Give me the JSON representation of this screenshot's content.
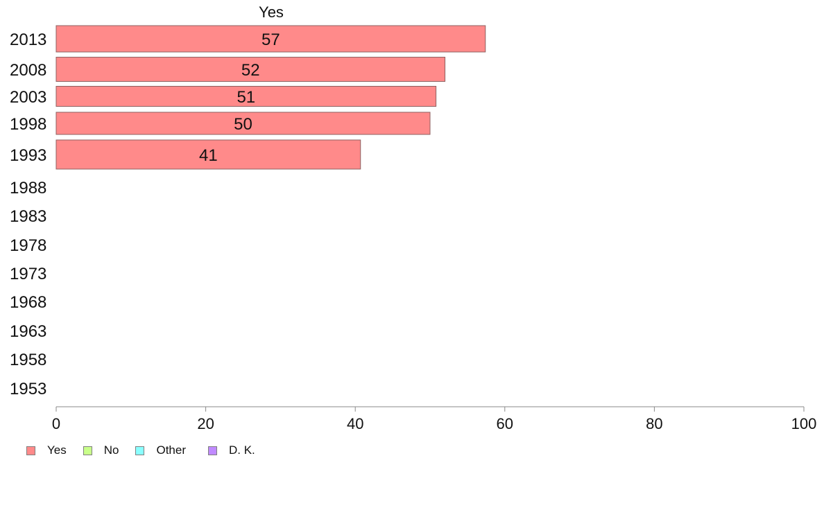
{
  "chart_data": {
    "type": "bar",
    "orientation": "horizontal",
    "series_header": "Yes",
    "categories": [
      "2013",
      "2008",
      "2003",
      "1998",
      "1993",
      "1988",
      "1983",
      "1978",
      "1973",
      "1968",
      "1963",
      "1958",
      "1953"
    ],
    "series": [
      {
        "name": "Yes",
        "color": "#ff8a8a",
        "values": [
          57.4,
          52.0,
          50.8,
          50.0,
          40.7,
          null,
          null,
          null,
          null,
          null,
          null,
          null,
          null
        ],
        "labels": [
          "57",
          "52",
          "51",
          "50",
          "41",
          "",
          "",
          "",
          "",
          "",
          "",
          "",
          ""
        ]
      }
    ],
    "xlim": [
      0,
      100
    ],
    "x_ticks": [
      "0",
      "20",
      "40",
      "60",
      "80",
      "100"
    ],
    "legend_position": "bottom-left",
    "grid": false,
    "legend": [
      {
        "label": "Yes",
        "color": "#ff8a8a"
      },
      {
        "label": "No",
        "color": "#c9ff8a"
      },
      {
        "label": "Other",
        "color": "#8affff"
      },
      {
        "label": "D. K.",
        "color": "#c08aff"
      }
    ]
  }
}
